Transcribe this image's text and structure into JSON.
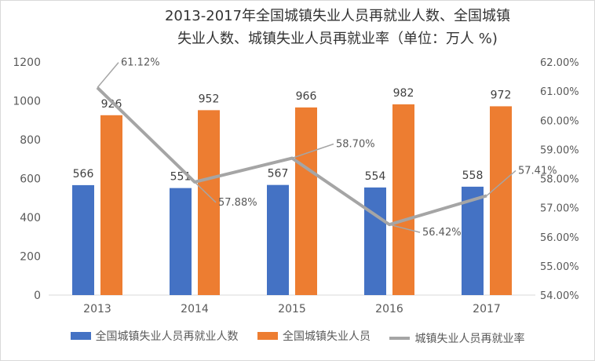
{
  "chart_data": {
    "type": "bar",
    "title_lines": [
      "2013-2017年全国城镇失业人员再就业人数、全国城镇",
      "失业人数、城镇失业人员再就业率（单位：万人 %)"
    ],
    "categories": [
      "2013",
      "2014",
      "2015",
      "2016",
      "2017"
    ],
    "series": [
      {
        "name": "全国城镇失业人员再就业人数",
        "kind": "bar",
        "axis": "left",
        "color": "#4472c4",
        "values": [
          566,
          551,
          567,
          554,
          558
        ]
      },
      {
        "name": "全国城镇失业人员",
        "kind": "bar",
        "axis": "left",
        "color": "#ed7d31",
        "values": [
          926,
          952,
          966,
          982,
          972
        ]
      },
      {
        "name": "城镇失业人员再就业率",
        "kind": "line",
        "axis": "right",
        "color": "#a5a5a5",
        "values": [
          61.12,
          57.88,
          58.7,
          56.42,
          57.41
        ]
      }
    ],
    "line_labels": [
      "61.12%",
      "57.88%",
      "58.70%",
      "56.42%",
      "57.41%"
    ],
    "y_left": {
      "min": 0,
      "max": 1200,
      "ticks": [
        "0",
        "200",
        "400",
        "600",
        "800",
        "1000",
        "1200"
      ]
    },
    "y_right": {
      "min": 54,
      "max": 62,
      "ticks": [
        "54.00%",
        "55.00%",
        "56.00%",
        "57.00%",
        "58.00%",
        "59.00%",
        "60.00%",
        "61.00%",
        "62.00%"
      ]
    },
    "grid": false,
    "legend_position": "bottom"
  }
}
